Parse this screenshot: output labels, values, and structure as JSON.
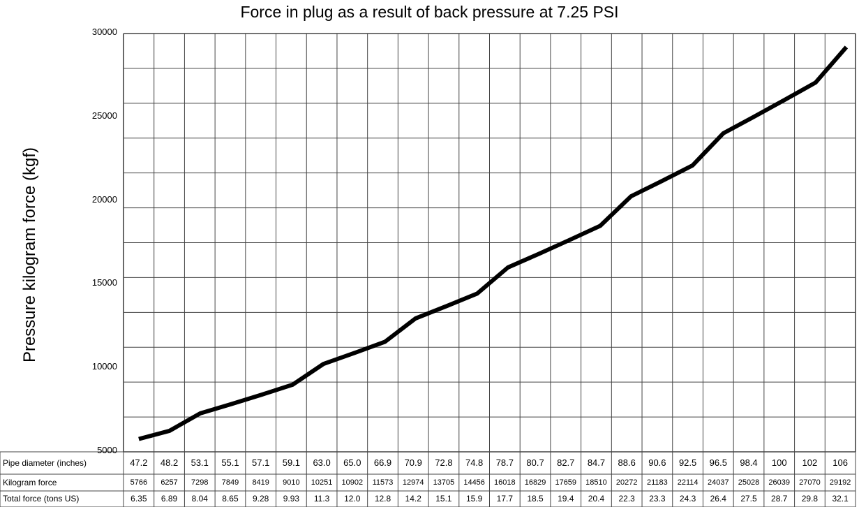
{
  "chart_data": {
    "type": "line",
    "title": "Force in plug as a result of back pressure at 7.25 PSI",
    "ylabel": "Pressure kilogram force (kgf)",
    "ylim": [
      5000,
      30000
    ],
    "yticks": [
      "30000",
      "25000",
      "20000",
      "15000",
      "10000",
      "5000"
    ],
    "grid": true,
    "x": [
      "47.2",
      "48.2",
      "53.1",
      "55.1",
      "57.1",
      "59.1",
      "63.0",
      "65.0",
      "66.9",
      "70.9",
      "72.8",
      "74.8",
      "78.7",
      "80.7",
      "82.7",
      "84.7",
      "88.6",
      "90.6",
      "92.5",
      "96.5",
      "98.4",
      "100",
      "102",
      "106"
    ],
    "y": [
      5766,
      6257,
      7298,
      7849,
      8419,
      9010,
      10251,
      10902,
      11573,
      12974,
      13705,
      14456,
      16018,
      16829,
      17659,
      18510,
      20272,
      21183,
      22114,
      24037,
      25028,
      26039,
      27070,
      29192
    ],
    "table": {
      "rows": [
        {
          "label": "Pipe diameter (inches)",
          "values": [
            "47.2",
            "48.2",
            "53.1",
            "55.1",
            "57.1",
            "59.1",
            "63.0",
            "65.0",
            "66.9",
            "70.9",
            "72.8",
            "74.8",
            "78.7",
            "80.7",
            "82.7",
            "84.7",
            "88.6",
            "90.6",
            "92.5",
            "96.5",
            "98.4",
            "100",
            "102",
            "106"
          ]
        },
        {
          "label": "Kilogram force",
          "values": [
            "5766",
            "6257",
            "7298",
            "7849",
            "8419",
            "9010",
            "10251",
            "10902",
            "11573",
            "12974",
            "13705",
            "14456",
            "16018",
            "16829",
            "17659",
            "18510",
            "20272",
            "21183",
            "22114",
            "24037",
            "25028",
            "26039",
            "27070",
            "29192"
          ]
        },
        {
          "label": "Total force (tons US)",
          "values": [
            "6.35",
            "6.89",
            "8.04",
            "8.65",
            "9.28",
            "9.93",
            "11.3",
            "12.0",
            "12.8",
            "14.2",
            "15.1",
            "15.9",
            "17.7",
            "18.5",
            "19.4",
            "20.4",
            "22.3",
            "23.3",
            "24.3",
            "26.4",
            "27.5",
            "28.7",
            "29.8",
            "32.1"
          ]
        }
      ]
    }
  }
}
